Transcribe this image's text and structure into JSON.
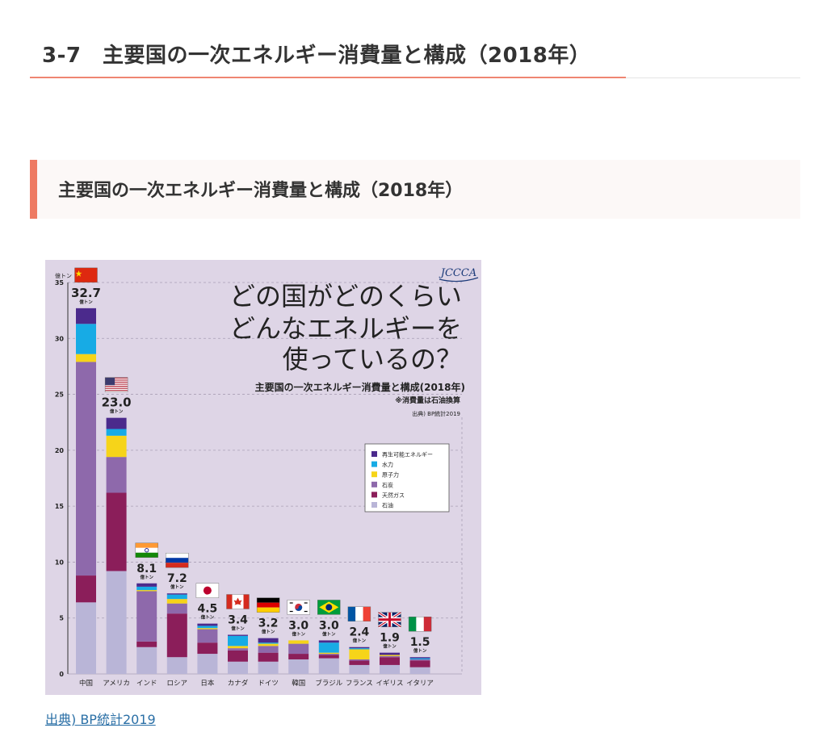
{
  "page": {
    "heading": "3-7　主要国の一次エネルギー消費量と構成（2018年）",
    "section_heading": "主要国の一次エネルギー消費量と構成（2018年）",
    "source_link": "出典) BP統計2019"
  },
  "infographic": {
    "logo_text": "JCCCA",
    "headline_lines": [
      "どの国がどのくらい",
      "どんなエネルギーを",
      "使っているの？"
    ],
    "chart_title": "主要国の一次エネルギー消費量と構成(2018年)",
    "note": "※消費量は石油換算",
    "source": "出典) BP統計2019",
    "total_unit": "億トン"
  },
  "colors": {
    "再生可能エネルギー": "#4b2a8c",
    "水力": "#17abe5",
    "原子力": "#f6d419",
    "石炭": "#8e69ab",
    "天然ガス": "#8b1e5a",
    "石油": "#b9b5d7"
  },
  "chart_data": {
    "type": "bar",
    "stacked": true,
    "ylabel": "億トン",
    "ylim": [
      0,
      35
    ],
    "yticks": [
      0,
      5,
      10,
      15,
      20,
      25,
      30,
      35
    ],
    "grid": true,
    "legend_position": "right",
    "categories": [
      "中国",
      "アメリカ",
      "インド",
      "ロシア",
      "日本",
      "カナダ",
      "ドイツ",
      "韓国",
      "ブラジル",
      "フランス",
      "イギリス",
      "イタリア"
    ],
    "totals": [
      "32.7",
      "23.0",
      "8.1",
      "7.2",
      "4.5",
      "3.4",
      "3.2",
      "3.0",
      "3.0",
      "2.4",
      "1.9",
      "1.5"
    ],
    "series": [
      {
        "name": "石油",
        "values": [
          6.4,
          9.2,
          2.4,
          1.5,
          1.8,
          1.1,
          1.1,
          1.3,
          1.4,
          0.8,
          0.8,
          0.6
        ]
      },
      {
        "name": "天然ガス",
        "values": [
          2.4,
          7.0,
          0.5,
          3.9,
          1.0,
          1.0,
          0.8,
          0.5,
          0.3,
          0.4,
          0.7,
          0.6
        ]
      },
      {
        "name": "石炭",
        "values": [
          19.1,
          3.2,
          4.5,
          0.9,
          1.2,
          0.2,
          0.6,
          0.9,
          0.1,
          0.1,
          0.1,
          0.1
        ]
      },
      {
        "name": "原子力",
        "values": [
          0.7,
          1.9,
          0.1,
          0.4,
          0.1,
          0.2,
          0.2,
          0.3,
          0.1,
          0.9,
          0.1,
          0.0
        ]
      },
      {
        "name": "水力",
        "values": [
          2.7,
          0.6,
          0.3,
          0.4,
          0.2,
          0.9,
          0.1,
          0.0,
          0.9,
          0.1,
          0.0,
          0.1
        ]
      },
      {
        "name": "再生可能エネルギー",
        "values": [
          1.4,
          1.0,
          0.3,
          0.1,
          0.2,
          0.1,
          0.4,
          0.0,
          0.2,
          0.1,
          0.2,
          0.1
        ]
      }
    ],
    "legend": [
      "再生可能エネルギー",
      "水力",
      "原子力",
      "石炭",
      "天然ガス",
      "石油"
    ],
    "flags": [
      "china-flag",
      "usa-flag",
      "india-flag",
      "russia-flag",
      "japan-flag",
      "canada-flag",
      "germany-flag",
      "korea-flag",
      "brazil-flag",
      "france-flag",
      "uk-flag",
      "italy-flag"
    ]
  }
}
